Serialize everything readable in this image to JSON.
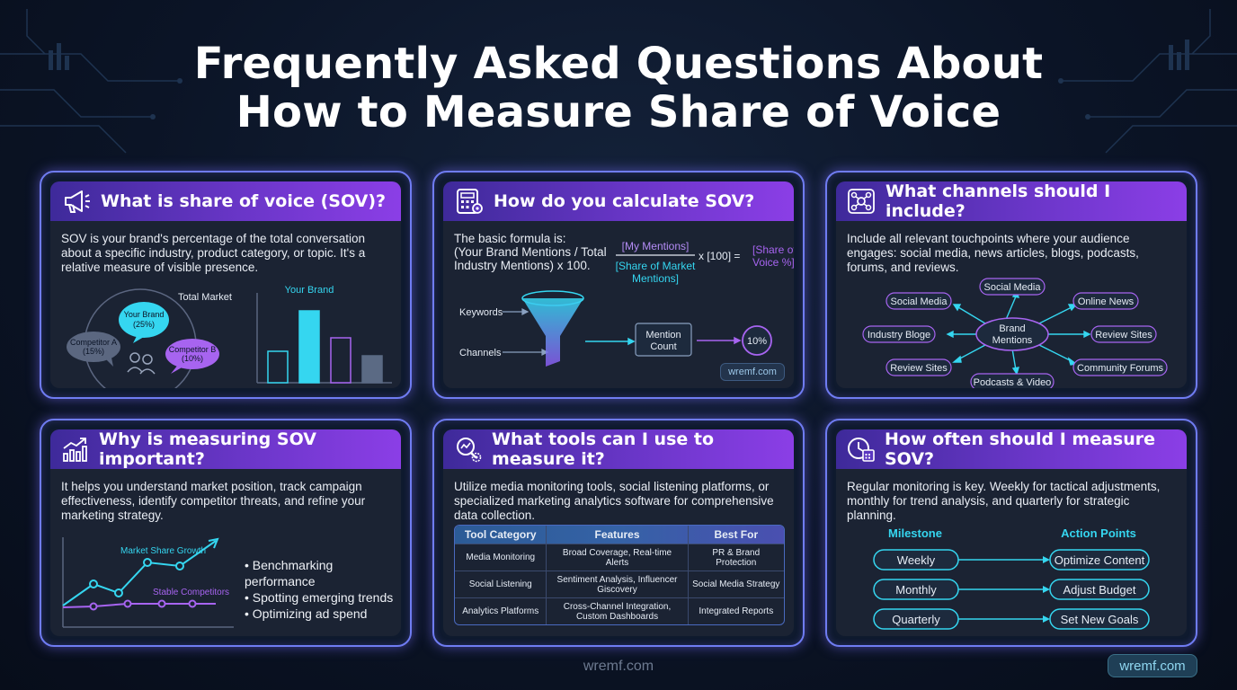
{
  "title_line1": "Frequently Asked Questions About",
  "title_line2": "How to Measure Share of Voice",
  "colors": {
    "cyan": "#35d6f0",
    "purple": "#a764f0",
    "border": "#6f7cf2",
    "head_gradient_end": "#8b3ee6"
  },
  "cards": {
    "what_is": {
      "icon": "megaphone-icon",
      "heading": "What is share of voice (SOV)?",
      "text": "SOV is your brand's percentage of the total conversation about a specific industry, product category, or topic. It's a relative measure of visible presence.",
      "market_label": "Total Market",
      "your_brand": "Your Brand",
      "your_brand_pct": "(25%)",
      "competitor_a": "Competitor A",
      "competitor_a_pct": "(15%)",
      "competitor_b": "Competitor B",
      "competitor_b_pct": "(10%)",
      "bar_label": "Your Brand",
      "bars": [
        0.35,
        0.8,
        0.5,
        0.3
      ]
    },
    "calculate": {
      "icon": "calculator-icon",
      "heading": "How do you calculate SOV?",
      "text_line1": "The basic formula is:",
      "text_line2": "(Your Brand Mentions / Total",
      "text_line3": "Industry Mentions) x 100.",
      "numerator": "[My Mentions]",
      "denominator_line1": "[Share of Market",
      "denominator_line2": "Mentions]",
      "multiplier": "x [100] =",
      "result_line1": "[Share of",
      "result_line2": "Voice %]",
      "keywords": "Keywords",
      "channels": "Channels",
      "mention_count_line1": "Mention",
      "mention_count_line2": "Count",
      "result_value": "10%",
      "watermark": "wremf.com"
    },
    "channels": {
      "icon": "network-icon",
      "heading": "What channels should I include?",
      "text": "Include all relevant touchpoints where your audience engages: social media, news articles, blogs, podcasts, forums, and reviews.",
      "center_line1": "Brand",
      "center_line2": "Mentions",
      "nodes": {
        "social_media_top": "Social Media",
        "social_media_left": "Social Media",
        "online_news": "Online News",
        "industry_blogs": "Industry Bloge",
        "review_sites_right": "Review Sites",
        "review_sites_left": "Review Sites",
        "community_forums": "Community Forums",
        "podcasts_video": "Podcasts & Video"
      }
    },
    "why": {
      "icon": "growth-chart-icon",
      "heading": "Why is measuring SOV important?",
      "text": "It helps you understand market position, track campaign effectiveness, identify competitor threats, and refine your marketing strategy.",
      "line1_label": "Market Share Growth",
      "line2_label": "Stable Competitors",
      "bullets": [
        "Benchmarking performance",
        "Spotting emerging trends",
        "Optimizing ad spend"
      ]
    },
    "tools": {
      "icon": "magnifier-gear-icon",
      "heading": "What tools can I use to measure it?",
      "text": "Utilize media monitoring tools, social listening platforms, or specialized marketing analytics software for comprehensive data collection.",
      "table_headers": [
        "Tool Category",
        "Features",
        "Best For"
      ],
      "table_rows": [
        [
          "Media Monitoring",
          "Broad Coverage, Real-time Alerts",
          "PR & Brand Protection"
        ],
        [
          "Social Listening",
          "Sentiment Analysis, Influencer Giscovery",
          "Social Media Strategy"
        ],
        [
          "Analytics Platforms",
          "Cross-Channel Integration, Custom Dashboards",
          "Integrated Reports"
        ]
      ]
    },
    "how_often": {
      "icon": "clock-calendar-icon",
      "heading": "How often should I measure SOV?",
      "text": "Regular monitoring is key. Weekly for tactical adjustments, monthly for trend analysis, and quarterly for strategic planning.",
      "col_left": "Milestone",
      "col_right": "Action Points",
      "milestones": [
        "Weekly",
        "Monthly",
        "Quarterly"
      ],
      "actions": [
        "Optimize Content",
        "Adjust Budget",
        "Set New Goals"
      ]
    }
  },
  "footer_center": "wremf.com",
  "footer_badge": "wremf.com"
}
